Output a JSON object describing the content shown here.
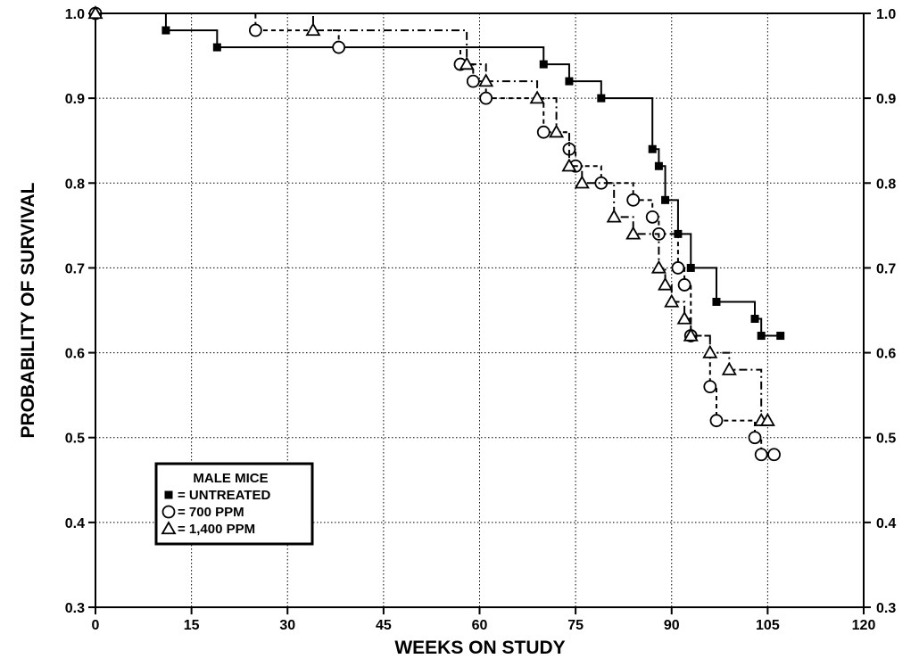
{
  "chart_data": {
    "type": "line",
    "step": true,
    "xlabel": "WEEKS ON STUDY",
    "ylabel": "PROBABILITY OF SURVIVAL",
    "xlim": [
      0,
      120
    ],
    "ylim": [
      0.3,
      1.0
    ],
    "x_ticks": [
      0,
      15,
      30,
      45,
      60,
      75,
      90,
      105,
      120
    ],
    "y_ticks": [
      0.3,
      0.4,
      0.5,
      0.6,
      0.7,
      0.8,
      0.9,
      1.0
    ],
    "x_tick_labels": [
      "0",
      "15",
      "30",
      "45",
      "60",
      "75",
      "90",
      "105",
      "120"
    ],
    "y_tick_labels": [
      "0.3",
      "0.4",
      "0.5",
      "0.6",
      "0.7",
      "0.8",
      "0.9",
      "1.0"
    ],
    "grid": true,
    "legend": {
      "title": "MALE MICE",
      "placement": "lower-left",
      "entries": [
        "= UNTREATED",
        "= 700 PPM",
        "= 1,400 PPM"
      ]
    },
    "series": [
      {
        "name": "UNTREATED",
        "marker": "filled-square",
        "line_style": "solid",
        "x": [
          0,
          11,
          19,
          38,
          70,
          74,
          79,
          87,
          88,
          89,
          91,
          93,
          97,
          103,
          104,
          107
        ],
        "y": [
          1.0,
          0.98,
          0.96,
          0.96,
          0.94,
          0.92,
          0.9,
          0.84,
          0.82,
          0.78,
          0.74,
          0.7,
          0.66,
          0.64,
          0.62,
          0.62
        ]
      },
      {
        "name": "700 PPM",
        "marker": "open-circle",
        "line_style": "dashed",
        "x": [
          0,
          25,
          38,
          57,
          59,
          61,
          70,
          74,
          75,
          79,
          84,
          87,
          88,
          91,
          92,
          93,
          96,
          97,
          103,
          104,
          106
        ],
        "y": [
          1.0,
          0.98,
          0.96,
          0.94,
          0.92,
          0.9,
          0.86,
          0.84,
          0.82,
          0.8,
          0.78,
          0.76,
          0.74,
          0.7,
          0.68,
          0.62,
          0.56,
          0.52,
          0.5,
          0.48,
          0.48
        ]
      },
      {
        "name": "1,400 PPM",
        "marker": "open-triangle",
        "line_style": "dash-dot",
        "x": [
          0,
          34,
          58,
          61,
          69,
          72,
          74,
          76,
          81,
          84,
          88,
          89,
          90,
          92,
          93,
          96,
          99,
          104,
          105
        ],
        "y": [
          1.0,
          0.98,
          0.94,
          0.92,
          0.9,
          0.86,
          0.82,
          0.8,
          0.76,
          0.74,
          0.7,
          0.68,
          0.66,
          0.64,
          0.62,
          0.6,
          0.58,
          0.52,
          0.52
        ]
      }
    ]
  }
}
